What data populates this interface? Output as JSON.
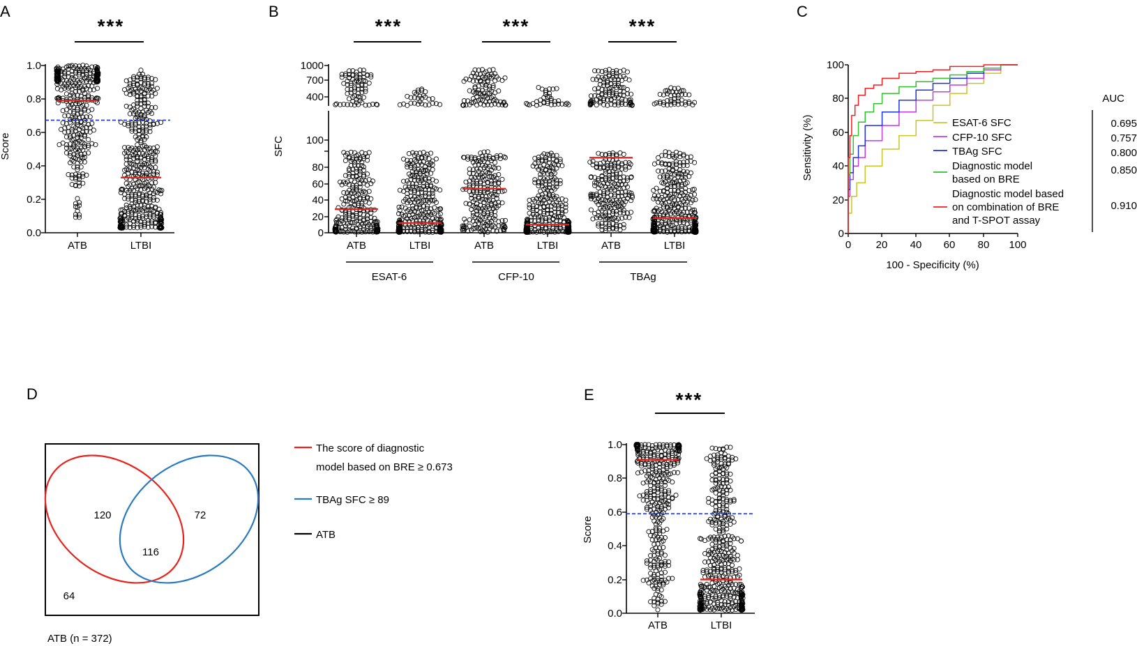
{
  "panels": {
    "A": {
      "letter": "A",
      "significance": "***",
      "ylabel": "Score",
      "yticks": [
        "0.0",
        "0.2",
        "0.4",
        "0.6",
        "0.8",
        "1.0"
      ],
      "groups": [
        "ATB",
        "LTBI"
      ]
    },
    "B": {
      "letter": "B",
      "significance": [
        "***",
        "***",
        "***"
      ],
      "ylabel": "SFC",
      "yticks_lower": [
        "0",
        "20",
        "40",
        "60",
        "80",
        "100"
      ],
      "yticks_upper": [
        "400",
        "700",
        "1000"
      ],
      "group_labels": [
        "ATB",
        "LTBI",
        "ATB",
        "LTBI",
        "ATB",
        "LTBI"
      ],
      "antigens": [
        "ESAT-6",
        "CFP-10",
        "TBAg"
      ]
    },
    "C": {
      "letter": "C",
      "ylabel": "Sensitivity (%)",
      "xlabel": "100 - Specificity (%)",
      "xticks": [
        "0",
        "20",
        "40",
        "60",
        "80",
        "100"
      ],
      "yticks": [
        "0",
        "20",
        "40",
        "60",
        "80",
        "100"
      ],
      "auc_header": "AUC",
      "legend": [
        {
          "lines": [
            "ESAT-6 SFC"
          ],
          "auc": "0.695"
        },
        {
          "lines": [
            "CFP-10 SFC"
          ],
          "auc": "0.757"
        },
        {
          "lines": [
            "TBAg SFC"
          ],
          "auc": "0.800"
        },
        {
          "lines": [
            "Diagnostic model",
            "based on BRE"
          ],
          "auc": "0.850"
        },
        {
          "lines": [
            "Diagnostic model based",
            "on combination of BRE",
            "and T-SPOT assay"
          ],
          "auc": "0.910"
        }
      ]
    },
    "D": {
      "letter": "D",
      "counts": {
        "red_only": "120",
        "overlap": "116",
        "blue_only": "72",
        "neither": "64"
      },
      "caption": "ATB (n = 372)",
      "legend": [
        {
          "lines": [
            "The score of diagnostic",
            "model based on BRE  ≥ 0.673"
          ]
        },
        {
          "lines": [
            "TBAg SFC ≥ 89"
          ]
        },
        {
          "lines": [
            "ATB"
          ]
        }
      ]
    },
    "E": {
      "letter": "E",
      "significance": "***",
      "ylabel": "Score",
      "yticks": [
        "0.0",
        "0.2",
        "0.4",
        "0.6",
        "0.8",
        "1.0"
      ],
      "groups": [
        "ATB",
        "LTBI"
      ]
    }
  },
  "colors": {
    "median": "#e8221c",
    "cutoff": "#1f3fe0",
    "venn_red": "#e8221c",
    "venn_blue": "#2a7ac0",
    "roc_esat6": "#c9c42a",
    "roc_cfp10": "#c13be0",
    "roc_tbag": "#1f2fe8",
    "roc_bre": "#2fbf2f",
    "roc_combo": "#ee1f1f"
  },
  "chart_data": [
    {
      "panel": "A",
      "type": "scatter",
      "ylabel": "Score",
      "ylim": [
        0,
        1
      ],
      "categories": [
        "ATB",
        "LTBI"
      ],
      "medians": [
        0.79,
        0.33
      ],
      "cutoff": 0.673,
      "n_points_approx": [
        372,
        480
      ]
    },
    {
      "panel": "B",
      "type": "scatter",
      "ylabel": "SFC",
      "ylim": [
        0,
        1000
      ],
      "axis_break_at": 100,
      "categories": [
        "ESAT-6 ATB",
        "ESAT-6 LTBI",
        "CFP-10 ATB",
        "CFP-10 LTBI",
        "TBAg ATB",
        "TBAg LTBI"
      ],
      "medians": [
        29,
        12,
        54,
        10,
        92,
        18
      ]
    },
    {
      "panel": "C",
      "type": "line",
      "xlabel": "100 - Specificity (%)",
      "ylabel": "Sensitivity (%)",
      "xlim": [
        0,
        100
      ],
      "ylim": [
        0,
        100
      ],
      "series": [
        {
          "name": "ESAT-6 SFC",
          "auc": 0.695,
          "x": [
            0,
            2,
            5,
            10,
            20,
            30,
            40,
            50,
            60,
            70,
            80,
            90,
            100
          ],
          "y": [
            0,
            12,
            22,
            30,
            40,
            50,
            58,
            67,
            76,
            83,
            89,
            95,
            100
          ]
        },
        {
          "name": "CFP-10 SFC",
          "auc": 0.757,
          "x": [
            0,
            1,
            3,
            6,
            10,
            20,
            30,
            40,
            50,
            60,
            70,
            80,
            90,
            100
          ],
          "y": [
            0,
            22,
            32,
            40,
            45,
            55,
            64,
            72,
            79,
            84,
            88,
            92,
            97,
            100
          ]
        },
        {
          "name": "TBAg SFC",
          "auc": 0.8,
          "x": [
            0,
            1,
            3,
            6,
            10,
            20,
            30,
            40,
            50,
            60,
            70,
            80,
            90,
            100
          ],
          "y": [
            0,
            26,
            36,
            45,
            52,
            64,
            72,
            79,
            85,
            89,
            92,
            95,
            98,
            100
          ]
        },
        {
          "name": "Diagnostic model based on BRE",
          "auc": 0.85,
          "x": [
            0,
            1,
            3,
            6,
            10,
            15,
            20,
            30,
            40,
            50,
            60,
            70,
            80,
            90,
            100
          ],
          "y": [
            0,
            35,
            47,
            58,
            66,
            72,
            77,
            83,
            87,
            90,
            92,
            94,
            96,
            98,
            100
          ]
        },
        {
          "name": "Diagnostic model based on combination of BRE and T-SPOT assay",
          "auc": 0.91,
          "x": [
            0,
            1,
            2,
            4,
            6,
            10,
            15,
            20,
            30,
            40,
            50,
            60,
            70,
            80,
            90,
            100
          ],
          "y": [
            0,
            45,
            58,
            70,
            76,
            82,
            86,
            88,
            92,
            95,
            96,
            97,
            99,
            99,
            100,
            100
          ]
        }
      ]
    },
    {
      "panel": "D",
      "type": "venn",
      "sets": [
        "The score of diagnostic model based on BRE ≥ 0.673",
        "TBAg SFC ≥ 89"
      ],
      "values": {
        "red_only": 120,
        "overlap": 116,
        "blue_only": 72,
        "neither": 64
      },
      "total": 372
    },
    {
      "panel": "E",
      "type": "scatter",
      "ylabel": "Score",
      "ylim": [
        0,
        1
      ],
      "categories": [
        "ATB",
        "LTBI"
      ],
      "medians": [
        0.91,
        0.2
      ],
      "cutoff": 0.59
    }
  ]
}
